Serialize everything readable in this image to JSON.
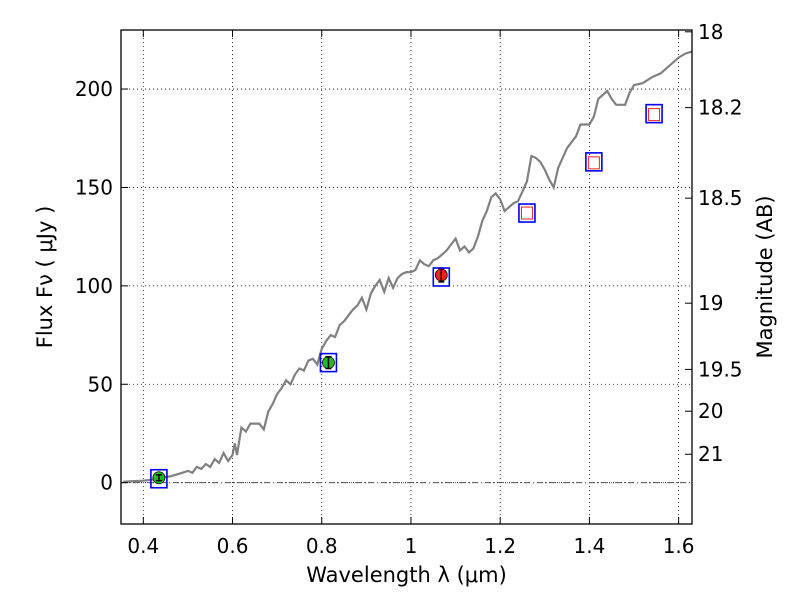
{
  "chart_data": {
    "type": "scatter",
    "title": "",
    "xlabel": "Wavelength  λ (μm)",
    "ylabel": "Flux  Fν  ( μJy )",
    "ylabel_right": "Magnitude (AB)",
    "xlim": [
      0.35,
      1.63
    ],
    "ylim": [
      -21,
      230
    ],
    "grid": true,
    "legend": "none",
    "x_ticks": [
      {
        "value": 0.4,
        "label": "0.4"
      },
      {
        "value": 0.6,
        "label": "0.6"
      },
      {
        "value": 0.8,
        "label": "0.8"
      },
      {
        "value": 1.0,
        "label": "1"
      },
      {
        "value": 1.2,
        "label": "1.2"
      },
      {
        "value": 1.4,
        "label": "1.4"
      },
      {
        "value": 1.6,
        "label": "1.6"
      }
    ],
    "y_ticks": [
      {
        "value": 0,
        "label": "0"
      },
      {
        "value": 50,
        "label": "50"
      },
      {
        "value": 100,
        "label": "100"
      },
      {
        "value": 150,
        "label": "150"
      },
      {
        "value": 200,
        "label": "200"
      }
    ],
    "mag_ticks": [
      {
        "mag": 18,
        "label": "18"
      },
      {
        "mag": 18.2,
        "label": "18.2"
      },
      {
        "mag": 18.5,
        "label": "18.5"
      },
      {
        "mag": 19,
        "label": "19"
      },
      {
        "mag": 19.5,
        "label": "19.5"
      },
      {
        "mag": 20,
        "label": "20"
      },
      {
        "mag": 21,
        "label": "21"
      }
    ],
    "spectrum": {
      "color": "#808080",
      "points": [
        [
          0.355,
          0.5
        ],
        [
          0.38,
          0.8
        ],
        [
          0.4,
          1.0
        ],
        [
          0.42,
          1.5
        ],
        [
          0.44,
          2.5
        ],
        [
          0.46,
          3.2
        ],
        [
          0.48,
          4.5
        ],
        [
          0.5,
          6.0
        ],
        [
          0.51,
          5.0
        ],
        [
          0.52,
          8.0
        ],
        [
          0.53,
          7.0
        ],
        [
          0.54,
          9.5
        ],
        [
          0.55,
          8.0
        ],
        [
          0.56,
          12.0
        ],
        [
          0.57,
          10.0
        ],
        [
          0.58,
          15.0
        ],
        [
          0.59,
          11.0
        ],
        [
          0.6,
          14.0
        ],
        [
          0.605,
          20.0
        ],
        [
          0.61,
          14.0
        ],
        [
          0.62,
          28.0
        ],
        [
          0.63,
          26.0
        ],
        [
          0.64,
          30.0
        ],
        [
          0.66,
          30.0
        ],
        [
          0.67,
          27.0
        ],
        [
          0.68,
          36.0
        ],
        [
          0.69,
          40.0
        ],
        [
          0.7,
          45.0
        ],
        [
          0.71,
          48.0
        ],
        [
          0.72,
          52.0
        ],
        [
          0.73,
          50.0
        ],
        [
          0.74,
          55.0
        ],
        [
          0.75,
          58.0
        ],
        [
          0.76,
          57.0
        ],
        [
          0.77,
          62.0
        ],
        [
          0.78,
          63.0
        ],
        [
          0.79,
          60.0
        ],
        [
          0.8,
          68.0
        ],
        [
          0.81,
          72.0
        ],
        [
          0.82,
          75.0
        ],
        [
          0.83,
          74.0
        ],
        [
          0.84,
          80.0
        ],
        [
          0.85,
          82.0
        ],
        [
          0.86,
          85.0
        ],
        [
          0.87,
          88.0
        ],
        [
          0.88,
          90.0
        ],
        [
          0.89,
          94.0
        ],
        [
          0.9,
          88.0
        ],
        [
          0.91,
          96.0
        ],
        [
          0.92,
          100.0
        ],
        [
          0.93,
          103.0
        ],
        [
          0.94,
          97.0
        ],
        [
          0.95,
          104.0
        ],
        [
          0.96,
          99.0
        ],
        [
          0.97,
          104.0
        ],
        [
          0.98,
          106.0
        ],
        [
          0.99,
          107.0
        ],
        [
          1.0,
          107.0
        ],
        [
          1.01,
          108.0
        ],
        [
          1.02,
          113.0
        ],
        [
          1.03,
          111.0
        ],
        [
          1.04,
          110.0
        ],
        [
          1.05,
          113.0
        ],
        [
          1.06,
          114.0
        ],
        [
          1.07,
          116.0
        ],
        [
          1.08,
          118.0
        ],
        [
          1.09,
          121.0
        ],
        [
          1.1,
          124.0
        ],
        [
          1.11,
          118.0
        ],
        [
          1.12,
          120.0
        ],
        [
          1.13,
          117.0
        ],
        [
          1.14,
          119.0
        ],
        [
          1.15,
          125.0
        ],
        [
          1.16,
          133.0
        ],
        [
          1.17,
          138.0
        ],
        [
          1.18,
          145.0
        ],
        [
          1.19,
          147.0
        ],
        [
          1.2,
          144.0
        ],
        [
          1.21,
          138.0
        ],
        [
          1.22,
          140.0
        ],
        [
          1.23,
          142.0
        ],
        [
          1.24,
          143.0
        ],
        [
          1.25,
          148.0
        ],
        [
          1.26,
          153.0
        ],
        [
          1.27,
          166.0
        ],
        [
          1.28,
          165.0
        ],
        [
          1.29,
          163.0
        ],
        [
          1.3,
          159.0
        ],
        [
          1.31,
          154.0
        ],
        [
          1.32,
          150.0
        ],
        [
          1.33,
          160.0
        ],
        [
          1.35,
          170.0
        ],
        [
          1.37,
          176.0
        ],
        [
          1.38,
          182.0
        ],
        [
          1.4,
          182.0
        ],
        [
          1.41,
          186.0
        ],
        [
          1.42,
          195.0
        ],
        [
          1.44,
          199.0
        ],
        [
          1.45,
          195.0
        ],
        [
          1.46,
          192.0
        ],
        [
          1.48,
          192.0
        ],
        [
          1.49,
          198.0
        ],
        [
          1.5,
          202.0
        ],
        [
          1.52,
          203.0
        ],
        [
          1.54,
          206.0
        ],
        [
          1.56,
          208.0
        ],
        [
          1.58,
          212.0
        ],
        [
          1.6,
          216.0
        ],
        [
          1.615,
          218.0
        ],
        [
          1.63,
          219.0
        ]
      ]
    },
    "observed": [
      {
        "x": 0.435,
        "y": 2.5,
        "err": 1.5,
        "color": "#22bb22"
      },
      {
        "x": 0.815,
        "y": 61.0,
        "err": 3.0,
        "color": "#22bb22"
      },
      {
        "x": 1.068,
        "y": 105.5,
        "err": 3.5,
        "color": "#ee2222"
      }
    ],
    "model_blue_squares": [
      {
        "x": 0.435,
        "y": 2.0
      },
      {
        "x": 0.815,
        "y": 61.0
      },
      {
        "x": 1.068,
        "y": 104.5
      },
      {
        "x": 1.26,
        "y": 137.0
      },
      {
        "x": 1.41,
        "y": 163.0
      },
      {
        "x": 1.545,
        "y": 187.5
      }
    ],
    "model_red_squares": [
      {
        "x": 1.26,
        "y": 137.0
      },
      {
        "x": 1.41,
        "y": 162.5
      },
      {
        "x": 1.545,
        "y": 187.0
      }
    ],
    "zero_line_style": "dash-dot"
  }
}
